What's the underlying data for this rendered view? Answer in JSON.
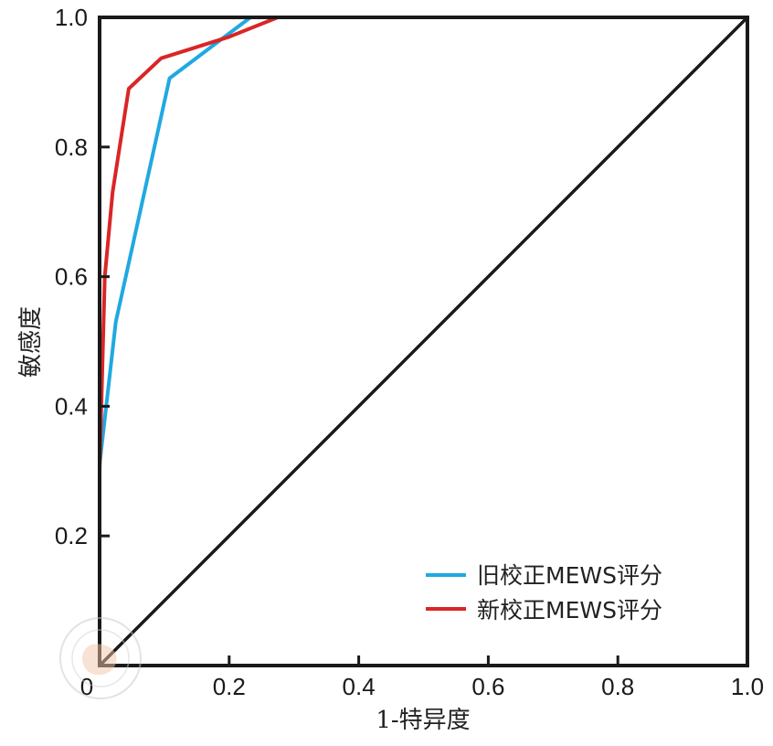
{
  "chart_data": {
    "type": "line",
    "xlabel": "1-特异度",
    "ylabel": "敏感度",
    "xlim": [
      0,
      1
    ],
    "ylim": [
      0,
      1
    ],
    "x_ticks": [
      "0",
      "0.2",
      "0.4",
      "0.6",
      "0.8",
      "1.0"
    ],
    "y_ticks": [
      "0.2",
      "0.4",
      "0.6",
      "0.8",
      "1.0"
    ],
    "grid": false,
    "legend_position": "bottom-right",
    "series": [
      {
        "name": "旧校正MEWS评分",
        "color": "#1fa9e1",
        "x": [
          0,
          0,
          0.025,
          0.108,
          0.233,
          0.29,
          1.0
        ],
        "y": [
          0,
          0.31,
          0.53,
          0.906,
          1.0,
          1.0,
          1.0
        ]
      },
      {
        "name": "新校正MEWS评分",
        "color": "#d92626",
        "x": [
          0,
          0,
          0.008,
          0.02,
          0.045,
          0.095,
          0.2,
          0.275,
          1.0
        ],
        "y": [
          0,
          0.3,
          0.6,
          0.73,
          0.89,
          0.937,
          0.97,
          1.0,
          1.0
        ]
      },
      {
        "name": "",
        "color": "#1a1a1a",
        "x": [
          0,
          1
        ],
        "y": [
          0,
          1
        ]
      }
    ]
  }
}
